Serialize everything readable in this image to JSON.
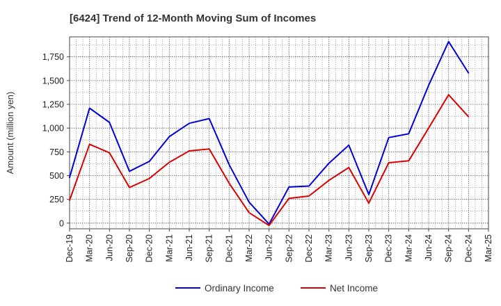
{
  "chart_data": {
    "type": "line",
    "title": "[6424]  Trend of 12-Month Moving Sum of Incomes",
    "xlabel": "",
    "ylabel": "Amount (million yen)",
    "ylim": [
      -60,
      1960
    ],
    "y_ticks": [
      0,
      250,
      500,
      750,
      1000,
      1250,
      1500,
      1750
    ],
    "y_tick_labels": [
      "0",
      "250",
      "500",
      "750",
      "1,000",
      "1,250",
      "1,500",
      "1,750"
    ],
    "categories": [
      "Dec-19",
      "Mar-20",
      "Jun-20",
      "Sep-20",
      "Dec-20",
      "Mar-21",
      "Jun-21",
      "Sep-21",
      "Dec-21",
      "Mar-22",
      "Jun-22",
      "Sep-22",
      "Dec-22",
      "Mar-23",
      "Jun-23",
      "Sep-23",
      "Dec-23",
      "Mar-24",
      "Jun-24",
      "Sep-24",
      "Dec-24",
      "Mar-25"
    ],
    "grid": true,
    "legend": "bottom",
    "series": [
      {
        "name": "Ordinary Income",
        "color": "#0000dd",
        "values": [
          480,
          1210,
          1060,
          545,
          650,
          910,
          1050,
          1100,
          615,
          220,
          -10,
          380,
          390,
          630,
          820,
          300,
          900,
          940,
          1450,
          1910,
          1580,
          null
        ]
      },
      {
        "name": "Net Income",
        "color": "#dd0000",
        "values": [
          240,
          830,
          740,
          375,
          470,
          640,
          760,
          780,
          420,
          110,
          -25,
          260,
          285,
          450,
          585,
          210,
          635,
          655,
          1000,
          1350,
          1120,
          null
        ]
      }
    ]
  }
}
